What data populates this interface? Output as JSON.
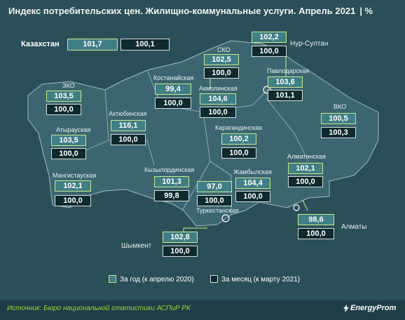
{
  "title": "Индекс потребительских цен. Жилищно-коммунальные услуги. Апрель 2021",
  "unit": "| %",
  "kazakhstan": {
    "name": "Казахстан",
    "year": "101,7",
    "month": "100,1"
  },
  "regions": [
    {
      "id": "zko",
      "name": "ЗКО",
      "year": "103,5",
      "month": "100,0"
    },
    {
      "id": "atyrau",
      "name": "Атырауская",
      "year": "103,5",
      "month": "100,0"
    },
    {
      "id": "mangystau",
      "name": "Мангистауская",
      "year": "102,1",
      "month": "100,0"
    },
    {
      "id": "aktobe",
      "name": "Актюбинская",
      "year": "116,1",
      "month": "100,0"
    },
    {
      "id": "kostanay",
      "name": "Костанайская",
      "year": "99,4",
      "month": "100,0"
    },
    {
      "id": "sko",
      "name": "СКО",
      "year": "102,5",
      "month": "100,0"
    },
    {
      "id": "akmola",
      "name": "Акмолинская",
      "year": "104,6",
      "month": "100,0"
    },
    {
      "id": "nursultan",
      "name": "Нур-Султан",
      "year": "102,2",
      "month": "100,0"
    },
    {
      "id": "pavlodar",
      "name": "Павлодарская",
      "year": "103,6",
      "month": "101,1"
    },
    {
      "id": "vko",
      "name": "ВКО",
      "year": "100,5",
      "month": "100,3"
    },
    {
      "id": "karaganda",
      "name": "Карагандинская",
      "year": "100,2",
      "month": "100,0"
    },
    {
      "id": "kyzylorda",
      "name": "Кызылординская",
      "year": "101,3",
      "month": "99,8"
    },
    {
      "id": "turkestan",
      "name": "Туркестанская",
      "year": "97,0",
      "month": "100,0"
    },
    {
      "id": "zhambyl",
      "name": "Жамбылская",
      "year": "104,4",
      "month": "100,0"
    },
    {
      "id": "almaty_obl",
      "name": "Алматинская",
      "year": "102,1",
      "month": "100,0"
    },
    {
      "id": "almaty",
      "name": "Алматы",
      "year": "98,6",
      "month": "100,0"
    },
    {
      "id": "shymkent",
      "name": "Шымкент",
      "year": "102,8",
      "month": "100,0"
    }
  ],
  "legend": {
    "year": "За год (к апрелю 2020)",
    "month": "За месяц (к марту 2021)"
  },
  "source": "Источник: Бюро национальной статистики АСПиР РК",
  "brand": "EnergyProm",
  "colors": {
    "background": "#2b4f58",
    "map": "#3b6670",
    "year_box": "#3f7f86",
    "month_box": "#0f2a2f",
    "accent": "#9ed33f"
  }
}
